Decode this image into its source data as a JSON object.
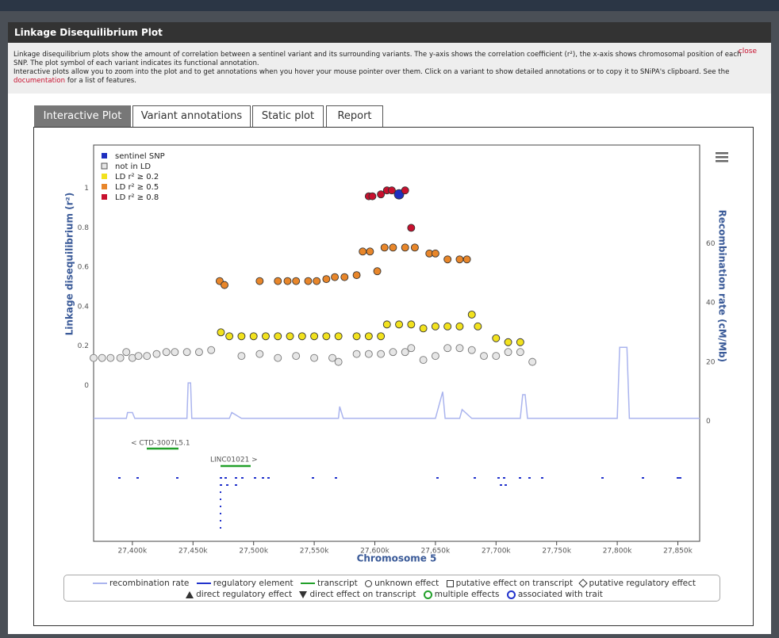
{
  "header": {
    "title": "Linkage Disequilibrium Plot",
    "close": "close"
  },
  "description": {
    "line1": "Linkage disequilibrium plots show the amount of correlation between a sentinel variant and its surrounding variants. The y-axis shows the correlation coefficient (r²), the x-axis shows chromosomal position of each SNP. The plot symbol of each variant indicates its functional annotation.",
    "line2_before": "Interactive plots allow you to zoom into the plot and to get annotations when you hover your mouse pointer over them. Click on a variant to show detailed annotations or to copy it to SNiPA's clipboard. See the",
    "link": "documentation",
    "line2_after": "for a list of features."
  },
  "tabs": [
    "Interactive Plot",
    "Variant annotations",
    "Static plot",
    "Report"
  ],
  "chart_data": {
    "type": "scatter",
    "xlabel": "Chromosome 5",
    "ylabel": "Linkage disequilibrium (r²)",
    "y2label": "Recombination rate (cM/Mb)",
    "xlim": [
      27368,
      27868
    ],
    "ylim": [
      -0.79,
      1.22
    ],
    "y2lim": [
      -40.5,
      93.3
    ],
    "xticks": [
      {
        "value": 27400,
        "label": "27,400k"
      },
      {
        "value": 27450,
        "label": "27,450k"
      },
      {
        "value": 27500,
        "label": "27,500k"
      },
      {
        "value": 27550,
        "label": "27,550k"
      },
      {
        "value": 27600,
        "label": "27,600k"
      },
      {
        "value": 27650,
        "label": "27,650k"
      },
      {
        "value": 27700,
        "label": "27,700k"
      },
      {
        "value": 27750,
        "label": "27,750k"
      },
      {
        "value": 27800,
        "label": "27,800k"
      },
      {
        "value": 27850,
        "label": "27,850k"
      }
    ],
    "yticks": [
      0,
      0.2,
      0.4,
      0.6,
      0.8,
      1
    ],
    "y2ticks": [
      0,
      20,
      40,
      60
    ],
    "grid": false,
    "series": [
      {
        "name": "sentinel SNP",
        "color": "#1f2fbf",
        "x": [
          27620
        ],
        "values": [
          0.97
        ]
      },
      {
        "name": "not in LD",
        "color": "#e6e6e6",
        "x": [
          27368,
          27375,
          27382,
          27390,
          27395,
          27400,
          27405,
          27412,
          27420,
          27428,
          27435,
          27445,
          27455,
          27465,
          27490,
          27505,
          27520,
          27535,
          27550,
          27565,
          27570,
          27585,
          27595,
          27605,
          27615,
          27625,
          27630,
          27640,
          27650,
          27660,
          27670,
          27680,
          27690,
          27700,
          27710,
          27720,
          27730
        ],
        "values": [
          0.14,
          0.14,
          0.14,
          0.14,
          0.17,
          0.14,
          0.15,
          0.15,
          0.16,
          0.17,
          0.17,
          0.17,
          0.17,
          0.18,
          0.15,
          0.16,
          0.14,
          0.15,
          0.14,
          0.14,
          0.12,
          0.16,
          0.16,
          0.16,
          0.17,
          0.17,
          0.19,
          0.13,
          0.15,
          0.19,
          0.19,
          0.18,
          0.15,
          0.15,
          0.17,
          0.17,
          0.12
        ]
      },
      {
        "name": "LD r² ≥ 0.2",
        "color": "#f2e21e",
        "x": [
          27473,
          27480,
          27490,
          27500,
          27510,
          27520,
          27530,
          27540,
          27550,
          27560,
          27570,
          27585,
          27595,
          27605,
          27610,
          27620,
          27630,
          27640,
          27650,
          27660,
          27670,
          27680,
          27685,
          27700,
          27710,
          27720
        ],
        "values": [
          0.27,
          0.25,
          0.25,
          0.25,
          0.25,
          0.25,
          0.25,
          0.25,
          0.25,
          0.25,
          0.25,
          0.25,
          0.25,
          0.25,
          0.31,
          0.31,
          0.31,
          0.29,
          0.3,
          0.3,
          0.3,
          0.36,
          0.3,
          0.24,
          0.22,
          0.22
        ]
      },
      {
        "name": "LD r² ≥ 0.5",
        "color": "#e8862a",
        "x": [
          27472,
          27476,
          27505,
          27520,
          27528,
          27535,
          27545,
          27552,
          27560,
          27567,
          27575,
          27585,
          27590,
          27596,
          27602,
          27608,
          27615,
          27625,
          27633,
          27645,
          27650,
          27660,
          27670,
          27676
        ],
        "values": [
          0.53,
          0.51,
          0.53,
          0.53,
          0.53,
          0.53,
          0.53,
          0.53,
          0.54,
          0.55,
          0.55,
          0.56,
          0.68,
          0.68,
          0.58,
          0.7,
          0.7,
          0.7,
          0.7,
          0.67,
          0.67,
          0.64,
          0.64,
          0.64
        ]
      },
      {
        "name": "LD r² ≥ 0.8",
        "color": "#c8102e",
        "x": [
          27595,
          27598,
          27605,
          27610,
          27614,
          27625,
          27630
        ],
        "values": [
          0.96,
          0.96,
          0.97,
          0.99,
          0.99,
          0.99,
          0.8
        ]
      },
      {
        "name": "recombination rate",
        "type": "line",
        "axis": "y2",
        "color": "#aab4ee",
        "x": [
          27368,
          27395,
          27396,
          27400,
          27402,
          27445,
          27446,
          27448,
          27449,
          27460,
          27480,
          27482,
          27490,
          27570,
          27571,
          27574,
          27650,
          27652,
          27656,
          27658,
          27670,
          27672,
          27680,
          27720,
          27722,
          27724,
          27726,
          27800,
          27802,
          27808,
          27810,
          27868
        ],
        "values": [
          1,
          1,
          3,
          3,
          1,
          1,
          13,
          13,
          1,
          1,
          1,
          3,
          1,
          1,
          5,
          1,
          1,
          4,
          10,
          1,
          1,
          4,
          1,
          1,
          9,
          9,
          1,
          1,
          25,
          25,
          1,
          1
        ]
      }
    ],
    "genes": [
      "< CTD-3007L5.1",
      "LINC01021 >"
    ],
    "legend_items": [
      "regulatory element",
      "transcript",
      "unknown effect",
      "putative effect on transcript",
      "putative regulatory effect",
      "direct regulatory effect",
      "direct effect on transcript",
      "multiple effects",
      "associated with trait"
    ]
  }
}
